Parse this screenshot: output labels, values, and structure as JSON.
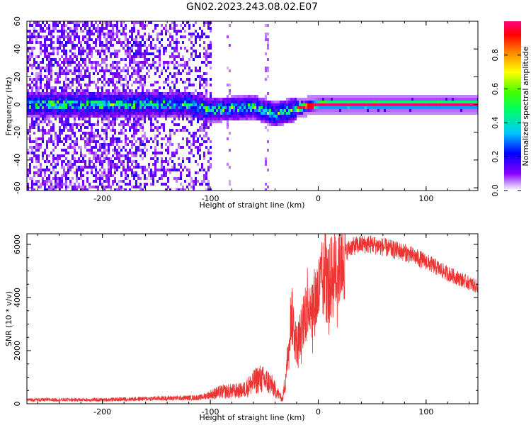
{
  "title": "GN02.2023.243.08.02.E07",
  "chart_data": [
    {
      "type": "heatmap",
      "xlabel": "Height of straight line (km)",
      "ylabel": "Frequency (Hz)",
      "xlim": [
        -270,
        148
      ],
      "ylim": [
        -62,
        60
      ],
      "xticks": [
        "-200",
        "-100",
        "0",
        "100"
      ],
      "yticks": [
        "60",
        "40",
        "20",
        "0",
        "-20",
        "-40",
        "-60"
      ],
      "colorbar": {
        "label": "Normalized spectral amplitude",
        "range": [
          0,
          1
        ],
        "ticks": [
          "0.0",
          "0.2",
          "0.4",
          "0.6",
          "0.8"
        ],
        "colormap": "hsv-like"
      },
      "ridge_center_hz": [
        [
          -120,
          1
        ],
        [
          -100,
          -3
        ],
        [
          -80,
          -2
        ],
        [
          -60,
          -1
        ],
        [
          -50,
          -4
        ],
        [
          -40,
          -6
        ],
        [
          -25,
          -3
        ],
        [
          -10,
          0
        ],
        [
          0,
          1
        ],
        [
          50,
          1
        ],
        [
          100,
          1
        ],
        [
          148,
          1
        ]
      ],
      "notes_noise_region": [
        -270,
        -100
      ]
    },
    {
      "type": "line",
      "xlabel": "Height of straight line (km)",
      "ylabel": "SNR (10 * v/v)",
      "xlim": [
        -270,
        148
      ],
      "ylim": [
        0,
        6400
      ],
      "xticks": [
        "-200",
        "-100",
        "0",
        "100"
      ],
      "yticks": [
        "0",
        "2000",
        "4000",
        "6000"
      ],
      "color": "#ee3333",
      "series": [
        {
          "values_envelope": [
            [
              -270,
              150
            ],
            [
              -200,
              150
            ],
            [
              -150,
              200
            ],
            [
              -110,
              230
            ],
            [
              -90,
              450
            ],
            [
              -70,
              500
            ],
            [
              -55,
              950
            ],
            [
              -45,
              800
            ],
            [
              -33,
              150
            ],
            [
              -30,
              1100
            ],
            [
              -25,
              3500
            ],
            [
              -20,
              2200
            ],
            [
              -15,
              2800
            ],
            [
              -10,
              4000
            ],
            [
              -5,
              3700
            ],
            [
              0,
              4200
            ],
            [
              5,
              4700
            ],
            [
              10,
              4500
            ],
            [
              20,
              5500
            ],
            [
              30,
              5900
            ],
            [
              40,
              6000
            ],
            [
              50,
              6000
            ],
            [
              60,
              5900
            ],
            [
              80,
              5700
            ],
            [
              100,
              5350
            ],
            [
              120,
              4900
            ],
            [
              148,
              4400
            ]
          ]
        }
      ]
    }
  ]
}
